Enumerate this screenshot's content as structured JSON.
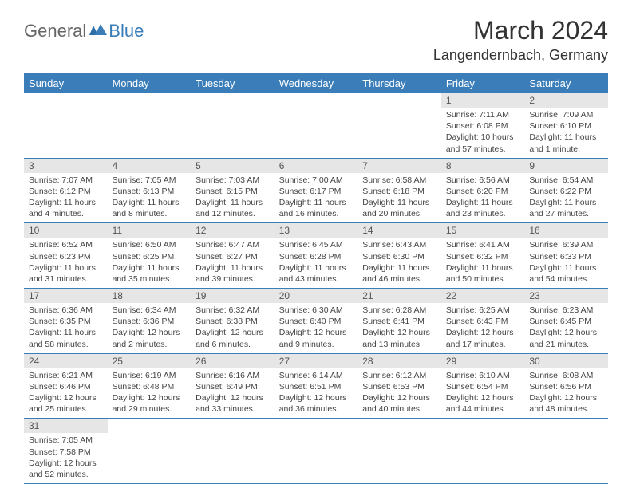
{
  "logo": {
    "general": "General",
    "blue": "Blue"
  },
  "title": "March 2024",
  "location": "Langendernbach, Germany",
  "colors": {
    "header_bg": "#3a7db8",
    "header_text": "#ffffff",
    "daynum_bg": "#e6e6e6",
    "border": "#3a7db8"
  },
  "weekdays": [
    "Sunday",
    "Monday",
    "Tuesday",
    "Wednesday",
    "Thursday",
    "Friday",
    "Saturday"
  ],
  "weeks": [
    [
      null,
      null,
      null,
      null,
      null,
      {
        "n": "1",
        "sr": "Sunrise: 7:11 AM",
        "ss": "Sunset: 6:08 PM",
        "dl": "Daylight: 10 hours and 57 minutes."
      },
      {
        "n": "2",
        "sr": "Sunrise: 7:09 AM",
        "ss": "Sunset: 6:10 PM",
        "dl": "Daylight: 11 hours and 1 minute."
      }
    ],
    [
      {
        "n": "3",
        "sr": "Sunrise: 7:07 AM",
        "ss": "Sunset: 6:12 PM",
        "dl": "Daylight: 11 hours and 4 minutes."
      },
      {
        "n": "4",
        "sr": "Sunrise: 7:05 AM",
        "ss": "Sunset: 6:13 PM",
        "dl": "Daylight: 11 hours and 8 minutes."
      },
      {
        "n": "5",
        "sr": "Sunrise: 7:03 AM",
        "ss": "Sunset: 6:15 PM",
        "dl": "Daylight: 11 hours and 12 minutes."
      },
      {
        "n": "6",
        "sr": "Sunrise: 7:00 AM",
        "ss": "Sunset: 6:17 PM",
        "dl": "Daylight: 11 hours and 16 minutes."
      },
      {
        "n": "7",
        "sr": "Sunrise: 6:58 AM",
        "ss": "Sunset: 6:18 PM",
        "dl": "Daylight: 11 hours and 20 minutes."
      },
      {
        "n": "8",
        "sr": "Sunrise: 6:56 AM",
        "ss": "Sunset: 6:20 PM",
        "dl": "Daylight: 11 hours and 23 minutes."
      },
      {
        "n": "9",
        "sr": "Sunrise: 6:54 AM",
        "ss": "Sunset: 6:22 PM",
        "dl": "Daylight: 11 hours and 27 minutes."
      }
    ],
    [
      {
        "n": "10",
        "sr": "Sunrise: 6:52 AM",
        "ss": "Sunset: 6:23 PM",
        "dl": "Daylight: 11 hours and 31 minutes."
      },
      {
        "n": "11",
        "sr": "Sunrise: 6:50 AM",
        "ss": "Sunset: 6:25 PM",
        "dl": "Daylight: 11 hours and 35 minutes."
      },
      {
        "n": "12",
        "sr": "Sunrise: 6:47 AM",
        "ss": "Sunset: 6:27 PM",
        "dl": "Daylight: 11 hours and 39 minutes."
      },
      {
        "n": "13",
        "sr": "Sunrise: 6:45 AM",
        "ss": "Sunset: 6:28 PM",
        "dl": "Daylight: 11 hours and 43 minutes."
      },
      {
        "n": "14",
        "sr": "Sunrise: 6:43 AM",
        "ss": "Sunset: 6:30 PM",
        "dl": "Daylight: 11 hours and 46 minutes."
      },
      {
        "n": "15",
        "sr": "Sunrise: 6:41 AM",
        "ss": "Sunset: 6:32 PM",
        "dl": "Daylight: 11 hours and 50 minutes."
      },
      {
        "n": "16",
        "sr": "Sunrise: 6:39 AM",
        "ss": "Sunset: 6:33 PM",
        "dl": "Daylight: 11 hours and 54 minutes."
      }
    ],
    [
      {
        "n": "17",
        "sr": "Sunrise: 6:36 AM",
        "ss": "Sunset: 6:35 PM",
        "dl": "Daylight: 11 hours and 58 minutes."
      },
      {
        "n": "18",
        "sr": "Sunrise: 6:34 AM",
        "ss": "Sunset: 6:36 PM",
        "dl": "Daylight: 12 hours and 2 minutes."
      },
      {
        "n": "19",
        "sr": "Sunrise: 6:32 AM",
        "ss": "Sunset: 6:38 PM",
        "dl": "Daylight: 12 hours and 6 minutes."
      },
      {
        "n": "20",
        "sr": "Sunrise: 6:30 AM",
        "ss": "Sunset: 6:40 PM",
        "dl": "Daylight: 12 hours and 9 minutes."
      },
      {
        "n": "21",
        "sr": "Sunrise: 6:28 AM",
        "ss": "Sunset: 6:41 PM",
        "dl": "Daylight: 12 hours and 13 minutes."
      },
      {
        "n": "22",
        "sr": "Sunrise: 6:25 AM",
        "ss": "Sunset: 6:43 PM",
        "dl": "Daylight: 12 hours and 17 minutes."
      },
      {
        "n": "23",
        "sr": "Sunrise: 6:23 AM",
        "ss": "Sunset: 6:45 PM",
        "dl": "Daylight: 12 hours and 21 minutes."
      }
    ],
    [
      {
        "n": "24",
        "sr": "Sunrise: 6:21 AM",
        "ss": "Sunset: 6:46 PM",
        "dl": "Daylight: 12 hours and 25 minutes."
      },
      {
        "n": "25",
        "sr": "Sunrise: 6:19 AM",
        "ss": "Sunset: 6:48 PM",
        "dl": "Daylight: 12 hours and 29 minutes."
      },
      {
        "n": "26",
        "sr": "Sunrise: 6:16 AM",
        "ss": "Sunset: 6:49 PM",
        "dl": "Daylight: 12 hours and 33 minutes."
      },
      {
        "n": "27",
        "sr": "Sunrise: 6:14 AM",
        "ss": "Sunset: 6:51 PM",
        "dl": "Daylight: 12 hours and 36 minutes."
      },
      {
        "n": "28",
        "sr": "Sunrise: 6:12 AM",
        "ss": "Sunset: 6:53 PM",
        "dl": "Daylight: 12 hours and 40 minutes."
      },
      {
        "n": "29",
        "sr": "Sunrise: 6:10 AM",
        "ss": "Sunset: 6:54 PM",
        "dl": "Daylight: 12 hours and 44 minutes."
      },
      {
        "n": "30",
        "sr": "Sunrise: 6:08 AM",
        "ss": "Sunset: 6:56 PM",
        "dl": "Daylight: 12 hours and 48 minutes."
      }
    ],
    [
      {
        "n": "31",
        "sr": "Sunrise: 7:05 AM",
        "ss": "Sunset: 7:58 PM",
        "dl": "Daylight: 12 hours and 52 minutes."
      },
      null,
      null,
      null,
      null,
      null,
      null
    ]
  ]
}
